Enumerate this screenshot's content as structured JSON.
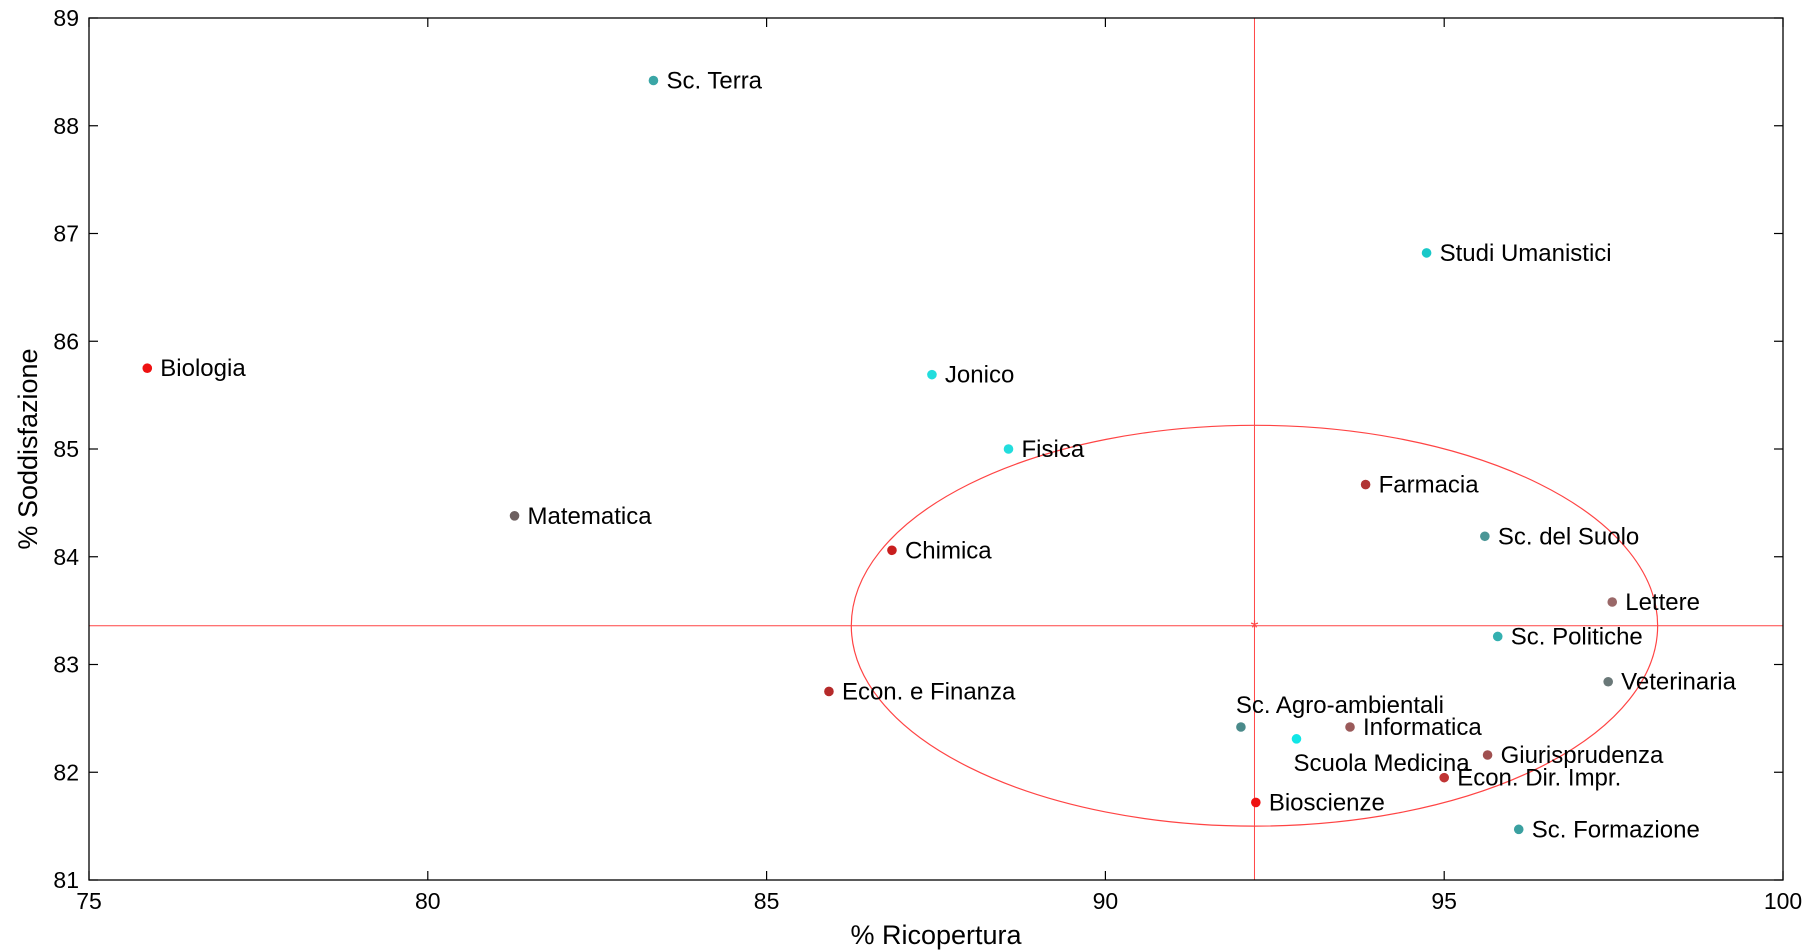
{
  "chart_data": {
    "type": "scatter",
    "title": "",
    "xlabel": "% Ricopertura",
    "ylabel": "% Soddisfazione",
    "xlim": [
      75,
      100
    ],
    "ylim": [
      81,
      89
    ],
    "xticks": [
      75,
      80,
      85,
      90,
      95,
      100
    ],
    "yticks": [
      81,
      82,
      83,
      84,
      85,
      86,
      87,
      88,
      89
    ],
    "grid": false,
    "legend": "none",
    "points": [
      {
        "label": "Sc. Terra",
        "x": 83.33,
        "y": 88.42,
        "color": "#3aa6a6"
      },
      {
        "label": "Studi Umanistici",
        "x": 94.74,
        "y": 86.82,
        "color": "#19c8c8"
      },
      {
        "label": "Biologia",
        "x": 75.86,
        "y": 85.75,
        "color": "#ee1111"
      },
      {
        "label": "Jonico",
        "x": 87.44,
        "y": 85.69,
        "color": "#22dddd"
      },
      {
        "label": "Fisica",
        "x": 88.57,
        "y": 85.0,
        "color": "#22dddd"
      },
      {
        "label": "Farmacia",
        "x": 93.84,
        "y": 84.67,
        "color": "#b03535"
      },
      {
        "label": "Matematica",
        "x": 81.28,
        "y": 84.38,
        "color": "#6d6060"
      },
      {
        "label": "Sc. del Suolo",
        "x": 95.6,
        "y": 84.19,
        "color": "#4a9696"
      },
      {
        "label": "Chimica",
        "x": 86.85,
        "y": 84.06,
        "color": "#c81e1e"
      },
      {
        "label": "Lettere",
        "x": 97.48,
        "y": 83.58,
        "color": "#9a6868"
      },
      {
        "label": "Sc. Politiche",
        "x": 95.79,
        "y": 83.26,
        "color": "#34b0b0"
      },
      {
        "label": "Veterinaria",
        "x": 97.42,
        "y": 82.84,
        "color": "#6a7878"
      },
      {
        "label": "Econ. e Finanza",
        "x": 85.92,
        "y": 82.75,
        "color": "#b52a2a"
      },
      {
        "label": "Sc. Agro-ambientali",
        "x": 92.0,
        "y": 82.42,
        "color": "#4a8a8a"
      },
      {
        "label": "Informatica",
        "x": 93.61,
        "y": 82.42,
        "color": "#9a5a5a"
      },
      {
        "label": "Scuola Medicina",
        "x": 92.82,
        "y": 82.31,
        "color": "#11e6e6"
      },
      {
        "label": "Giurisprudenza",
        "x": 95.64,
        "y": 82.16,
        "color": "#a05050"
      },
      {
        "label": "Econ. Dir. Impr.",
        "x": 95.0,
        "y": 81.95,
        "color": "#c03535"
      },
      {
        "label": "Bioscienze",
        "x": 92.22,
        "y": 81.72,
        "color": "#ee1111"
      },
      {
        "label": "Sc. Formazione",
        "x": 96.1,
        "y": 81.47,
        "color": "#3aa0a0"
      }
    ],
    "reference_lines": {
      "x": 92.2,
      "y": 83.36,
      "color": "#ff4444"
    },
    "ellipse": {
      "cx": 92.2,
      "cy": 83.36,
      "rx": 5.95,
      "ry": 1.86,
      "color": "#ff4444"
    },
    "center_marker": {
      "x": 92.2,
      "y": 83.36,
      "symbol": "*"
    }
  }
}
